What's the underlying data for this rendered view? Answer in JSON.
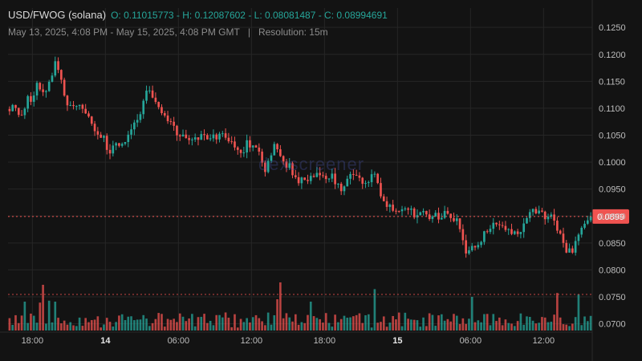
{
  "header": {
    "pair": "USD/FWOG (solana)",
    "ohlc": "O: 0.11015773 - H: 0.12087602 - L: 0.08081487 - C: 0.08994691",
    "range": "May 13, 2025, 4:08 PM - May 15, 2025, 4:08 PM GMT",
    "separator": "|",
    "resolution": "Resolution: 15m"
  },
  "watermark": "dexscreener",
  "colors": {
    "background": "#131313",
    "up": "#26a69a",
    "down": "#ef5350",
    "grid": "#262626",
    "text": "#bdbdbd"
  },
  "chart_data": {
    "type": "candlestick",
    "title": "USD/FWOG (solana)",
    "resolution": "15m",
    "ylim": [
      0.0686,
      0.1286
    ],
    "yticks": [
      "0.1250",
      "0.1200",
      "0.1150",
      "0.1100",
      "0.1050",
      "0.1000",
      "0.0950",
      "0.0900",
      "0.0850",
      "0.0800",
      "0.0750",
      "0.0700"
    ],
    "xticks": [
      {
        "label": "18:00",
        "hour": 2,
        "bold": false
      },
      {
        "label": "14",
        "hour": 8,
        "bold": true
      },
      {
        "label": "06:00",
        "hour": 14,
        "bold": false
      },
      {
        "label": "12:00",
        "hour": 20,
        "bold": false
      },
      {
        "label": "18:00",
        "hour": 26,
        "bold": false
      },
      {
        "label": "15",
        "hour": 32,
        "bold": true
      },
      {
        "label": "06:00",
        "hour": 38,
        "bold": false
      },
      {
        "label": "12:00",
        "hour": 44,
        "bold": false
      }
    ],
    "xrange_hours": [
      0,
      48
    ],
    "last_price": 0.0899,
    "last_price_label": "0.0899",
    "volume_reference_level": 0.75,
    "anchors": [
      [
        0,
        0.1098
      ],
      [
        1,
        0.1108
      ],
      [
        2,
        0.1085
      ],
      [
        3,
        0.1092
      ],
      [
        4,
        0.1126
      ],
      [
        5,
        0.1103
      ],
      [
        6,
        0.1158
      ],
      [
        7,
        0.1128
      ],
      [
        8,
        0.113
      ],
      [
        9,
        0.1152
      ],
      [
        10,
        0.119
      ],
      [
        11,
        0.1162
      ],
      [
        12,
        0.1115
      ],
      [
        13,
        0.1102
      ],
      [
        14,
        0.1098
      ],
      [
        15,
        0.1108
      ],
      [
        16,
        0.1098
      ],
      [
        17,
        0.1085
      ],
      [
        18,
        0.106
      ],
      [
        19,
        0.1058
      ],
      [
        20,
        0.105
      ],
      [
        21,
        0.1025
      ],
      [
        22,
        0.102
      ],
      [
        23,
        0.1035
      ],
      [
        24,
        0.103
      ],
      [
        25,
        0.104
      ],
      [
        26,
        0.105
      ],
      [
        27,
        0.1075
      ],
      [
        28,
        0.108
      ],
      [
        29,
        0.1125
      ],
      [
        30,
        0.1138
      ],
      [
        31,
        0.111
      ],
      [
        32,
        0.1095
      ],
      [
        33,
        0.1085
      ],
      [
        34,
        0.1082
      ],
      [
        35,
        0.108
      ],
      [
        36,
        0.1055
      ],
      [
        37,
        0.1045
      ],
      [
        38,
        0.1042
      ],
      [
        39,
        0.1045
      ],
      [
        40,
        0.104
      ],
      [
        41,
        0.1045
      ],
      [
        42,
        0.1045
      ],
      [
        43,
        0.1038
      ],
      [
        44,
        0.1048
      ],
      [
        45,
        0.105
      ],
      [
        46,
        0.1045
      ],
      [
        47,
        0.104
      ],
      [
        48,
        0.1035
      ],
      [
        49,
        0.1015
      ],
      [
        50,
        0.102
      ],
      [
        51,
        0.1035
      ],
      [
        52,
        0.1025
      ],
      [
        53,
        0.102
      ],
      [
        54,
        0.1008
      ],
      [
        55,
        0.0985
      ],
      [
        56,
        0.1005
      ],
      [
        57,
        0.1035
      ],
      [
        58,
        0.101
      ],
      [
        59,
        0.1
      ],
      [
        60,
        0.0995
      ],
      [
        61,
        0.0975
      ],
      [
        62,
        0.0968
      ],
      [
        63,
        0.0965
      ],
      [
        64,
        0.0968
      ],
      [
        65,
        0.0972
      ],
      [
        66,
        0.0978
      ],
      [
        67,
        0.0972
      ],
      [
        68,
        0.0975
      ],
      [
        69,
        0.0975
      ],
      [
        70,
        0.0965
      ],
      [
        71,
        0.095
      ],
      [
        72,
        0.0962
      ],
      [
        73,
        0.0975
      ],
      [
        74,
        0.097
      ],
      [
        75,
        0.0968
      ],
      [
        76,
        0.0962
      ],
      [
        77,
        0.0968
      ],
      [
        78,
        0.0978
      ],
      [
        79,
        0.0965
      ],
      [
        80,
        0.094
      ],
      [
        81,
        0.0925
      ],
      [
        82,
        0.0915
      ],
      [
        83,
        0.09
      ],
      [
        84,
        0.092
      ],
      [
        85,
        0.0918
      ],
      [
        86,
        0.0908
      ],
      [
        87,
        0.0905
      ],
      [
        88,
        0.0898
      ],
      [
        89,
        0.0902
      ],
      [
        90,
        0.09
      ],
      [
        91,
        0.0904
      ],
      [
        92,
        0.09
      ],
      [
        93,
        0.0898
      ],
      [
        94,
        0.0906
      ],
      [
        95,
        0.09
      ],
      [
        96,
        0.0895
      ],
      [
        97,
        0.087
      ],
      [
        98,
        0.0832
      ],
      [
        99,
        0.0838
      ],
      [
        100,
        0.084
      ],
      [
        101,
        0.0845
      ],
      [
        102,
        0.0865
      ],
      [
        103,
        0.0878
      ],
      [
        104,
        0.088
      ],
      [
        105,
        0.0882
      ],
      [
        106,
        0.088
      ],
      [
        107,
        0.0878
      ],
      [
        108,
        0.0872
      ],
      [
        109,
        0.087
      ],
      [
        110,
        0.0878
      ],
      [
        111,
        0.0898
      ],
      [
        112,
        0.0912
      ],
      [
        113,
        0.0908
      ],
      [
        114,
        0.0905
      ],
      [
        115,
        0.09
      ],
      [
        116,
        0.0902
      ],
      [
        117,
        0.089
      ],
      [
        118,
        0.0872
      ],
      [
        119,
        0.085
      ],
      [
        120,
        0.0832
      ],
      [
        121,
        0.0838
      ],
      [
        122,
        0.0858
      ],
      [
        123,
        0.0872
      ],
      [
        124,
        0.0895
      ],
      [
        125,
        0.0899
      ]
    ],
    "volume_spikes": [
      {
        "index": 5,
        "value": 0.6
      },
      {
        "index": 10,
        "value": 0.58
      },
      {
        "index": 11,
        "value": 0.95
      },
      {
        "index": 13,
        "value": 0.62
      },
      {
        "index": 15,
        "value": 0.6
      },
      {
        "index": 88,
        "value": 0.65
      },
      {
        "index": 89,
        "value": 1.0
      },
      {
        "index": 99,
        "value": 0.6
      },
      {
        "index": 120,
        "value": 0.86
      },
      {
        "index": 152,
        "value": 0.7
      },
      {
        "index": 180,
        "value": 0.78
      },
      {
        "index": 187,
        "value": 0.75
      },
      {
        "index": 193,
        "value": 0.68
      },
      {
        "index": 198,
        "value": 0.55
      },
      {
        "index": 210,
        "value": 0.76
      },
      {
        "index": 212,
        "value": 0.72
      },
      {
        "index": 216,
        "value": 0.76
      },
      {
        "index": 218,
        "value": 0.62
      }
    ]
  }
}
